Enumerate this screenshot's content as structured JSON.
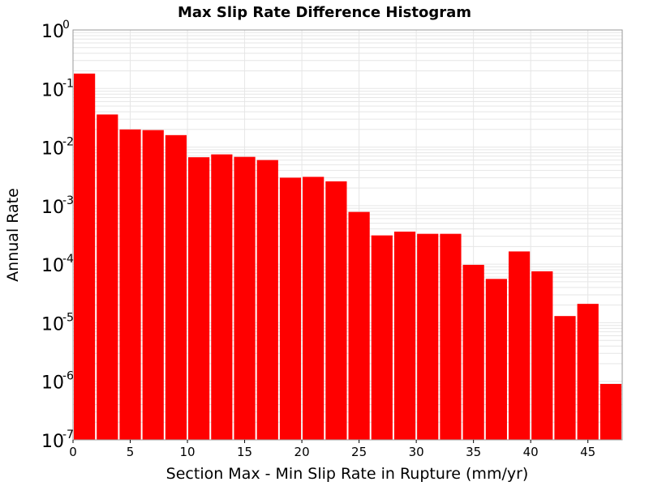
{
  "chart_data": {
    "type": "bar",
    "title": "Max Slip Rate Difference Histogram",
    "xlabel": "Section Max - Min Slip Rate in Rupture (mm/yr)",
    "ylabel": "Annual Rate",
    "y_scale": "log",
    "ylim": [
      1e-07,
      1
    ],
    "xlim": [
      0,
      48
    ],
    "bin_width": 2,
    "grid": true,
    "x_ticks": [
      0,
      5,
      10,
      15,
      20,
      25,
      30,
      35,
      40,
      45
    ],
    "y_ticks": [
      {
        "base": "10",
        "exp": "0"
      },
      {
        "base": "10",
        "exp": "-1"
      },
      {
        "base": "10",
        "exp": "-2"
      },
      {
        "base": "10",
        "exp": "-3"
      },
      {
        "base": "10",
        "exp": "-4"
      },
      {
        "base": "10",
        "exp": "-5"
      },
      {
        "base": "10",
        "exp": "-6"
      },
      {
        "base": "10",
        "exp": "-7"
      }
    ],
    "bar_color": "#ff0000",
    "grid_color": "#e6e6e6",
    "bins": [
      {
        "x_start": 0,
        "value": 0.18
      },
      {
        "x_start": 2,
        "value": 0.036
      },
      {
        "x_start": 4,
        "value": 0.02
      },
      {
        "x_start": 6,
        "value": 0.0195
      },
      {
        "x_start": 8,
        "value": 0.016
      },
      {
        "x_start": 10,
        "value": 0.0067
      },
      {
        "x_start": 12,
        "value": 0.0075
      },
      {
        "x_start": 14,
        "value": 0.0068
      },
      {
        "x_start": 16,
        "value": 0.006
      },
      {
        "x_start": 18,
        "value": 0.003
      },
      {
        "x_start": 20,
        "value": 0.0031
      },
      {
        "x_start": 22,
        "value": 0.0026
      },
      {
        "x_start": 24,
        "value": 0.00078
      },
      {
        "x_start": 26,
        "value": 0.00031
      },
      {
        "x_start": 28,
        "value": 0.00036
      },
      {
        "x_start": 30,
        "value": 0.00033
      },
      {
        "x_start": 32,
        "value": 0.00033
      },
      {
        "x_start": 34,
        "value": 9.75e-05
      },
      {
        "x_start": 36,
        "value": 5.6e-05
      },
      {
        "x_start": 38,
        "value": 0.000165
      },
      {
        "x_start": 40,
        "value": 7.55e-05
      },
      {
        "x_start": 42,
        "value": 1.3e-05
      },
      {
        "x_start": 44,
        "value": 2.1e-05
      },
      {
        "x_start": 46,
        "value": 9e-07
      }
    ]
  }
}
